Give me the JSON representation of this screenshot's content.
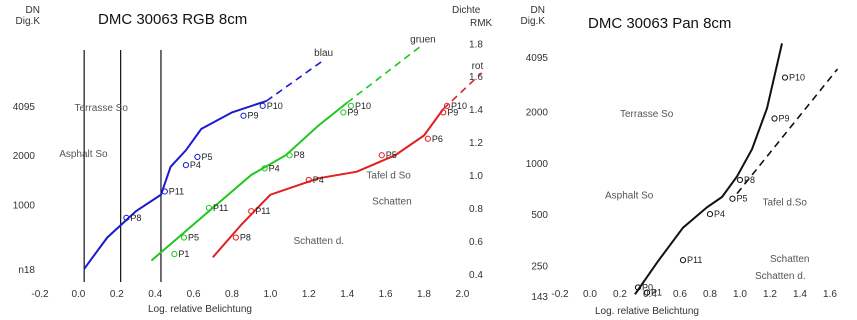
{
  "chart_data": [
    {
      "type": "line",
      "title": "DMC 30063 RGB 8cm",
      "left_axis_title": [
        "DN",
        "Dig.K"
      ],
      "right_axis_title": [
        "Dichte",
        "RMK"
      ],
      "xlabel": "Log. relative Belichtung",
      "x_ticks": [
        "-0.2",
        "0.0",
        "0.2",
        "0.4",
        "0.6",
        "0.8",
        "1.0",
        "1.2",
        "1.4",
        "1.6",
        "1.8",
        "2.0"
      ],
      "xlim": [
        -0.2,
        2.05
      ],
      "left_y_ticks": [
        {
          "label": "4095",
          "at": 1.42
        },
        {
          "label": "2000",
          "at": 1.12
        },
        {
          "label": "1000",
          "at": 0.82
        },
        {
          "label": "n18",
          "at": 0.43
        }
      ],
      "right_y_ticks": [
        "1.8",
        "1.6",
        "1.4",
        "1.2",
        "1.0",
        "0.8",
        "0.6",
        "0.4"
      ],
      "ylim": [
        0.35,
        1.82
      ],
      "vertical_lines_x": [
        0.03,
        0.22,
        0.43
      ],
      "annotations": [
        {
          "text": "Terrasse So",
          "x": -0.02,
          "y": 1.39
        },
        {
          "text": "Asphalt So",
          "x": -0.1,
          "y": 1.11
        },
        {
          "text": "Tafel d So",
          "x": 1.5,
          "y": 0.98
        },
        {
          "text": "Schatten",
          "x": 1.53,
          "y": 0.82
        },
        {
          "text": "Schatten d.",
          "x": 1.12,
          "y": 0.58
        }
      ],
      "series": [
        {
          "name": "blau",
          "color": "#1a1ad0",
          "x": [
            0.03,
            0.15,
            0.3,
            0.43,
            0.48,
            0.56,
            0.64,
            0.8,
            0.98
          ],
          "y": [
            0.43,
            0.62,
            0.78,
            0.88,
            1.05,
            1.15,
            1.28,
            1.38,
            1.45
          ],
          "extension_x": [
            0.98,
            1.28
          ],
          "extension_y": [
            1.45,
            1.7
          ],
          "points": [
            {
              "label": "P8",
              "x": 0.25,
              "y": 0.74
            },
            {
              "label": "P11",
              "x": 0.45,
              "y": 0.9
            },
            {
              "label": "P5",
              "x": 0.62,
              "y": 1.11
            },
            {
              "label": "P4",
              "x": 0.56,
              "y": 1.06
            },
            {
              "label": "P9",
              "x": 0.86,
              "y": 1.36
            },
            {
              "label": "P10",
              "x": 0.96,
              "y": 1.42
            }
          ]
        },
        {
          "name": "gruen",
          "color": "#1ec81e",
          "x": [
            0.38,
            0.55,
            0.72,
            0.9,
            1.08,
            1.25,
            1.4
          ],
          "y": [
            0.48,
            0.65,
            0.82,
            1.0,
            1.12,
            1.3,
            1.44
          ],
          "extension_x": [
            1.4,
            1.78
          ],
          "extension_y": [
            1.44,
            1.78
          ],
          "points": [
            {
              "label": "P1",
              "x": 0.5,
              "y": 0.52
            },
            {
              "label": "P5",
              "x": 0.55,
              "y": 0.62
            },
            {
              "label": "P11",
              "x": 0.68,
              "y": 0.8
            },
            {
              "label": "P4",
              "x": 0.97,
              "y": 1.04
            },
            {
              "label": "P8",
              "x": 1.1,
              "y": 1.12
            },
            {
              "label": "P9",
              "x": 1.38,
              "y": 1.38
            },
            {
              "label": "P10",
              "x": 1.42,
              "y": 1.42
            }
          ]
        },
        {
          "name": "rot",
          "color": "#e02020",
          "x": [
            0.7,
            0.85,
            1.0,
            1.25,
            1.45,
            1.65,
            1.8,
            1.9
          ],
          "y": [
            0.5,
            0.7,
            0.88,
            0.98,
            1.02,
            1.12,
            1.24,
            1.4
          ],
          "extension_x": [
            1.9,
            2.1
          ],
          "extension_y": [
            1.4,
            1.62
          ],
          "points": [
            {
              "label": "P8",
              "x": 0.82,
              "y": 0.62
            },
            {
              "label": "P11",
              "x": 0.9,
              "y": 0.78
            },
            {
              "label": "P4",
              "x": 1.2,
              "y": 0.97
            },
            {
              "label": "P5",
              "x": 1.58,
              "y": 1.12
            },
            {
              "label": "P6",
              "x": 1.82,
              "y": 1.22
            },
            {
              "label": "P9",
              "x": 1.9,
              "y": 1.38
            },
            {
              "label": "P10",
              "x": 1.92,
              "y": 1.42
            }
          ]
        }
      ]
    },
    {
      "type": "line",
      "title": "DMC 30063 Pan 8cm",
      "left_axis_title": [
        "DN",
        "Dig.K"
      ],
      "xlabel": "Log. relative Belichtung",
      "x_ticks": [
        "-0.2",
        "0.0",
        "0.2",
        "0.4",
        "0.6",
        "0.8",
        "1.0",
        "1.2",
        "1.4",
        "1.6"
      ],
      "xlim": [
        -0.2,
        1.72
      ],
      "left_y_ticks": [
        {
          "label": "4095",
          "at": 1.72
        },
        {
          "label": "2000",
          "at": 1.4
        },
        {
          "label": "1000",
          "at": 1.1
        },
        {
          "label": "500",
          "at": 0.8
        },
        {
          "label": "250",
          "at": 0.5
        },
        {
          "label": "143",
          "at": 0.32
        }
      ],
      "ylim": [
        0.32,
        1.82
      ],
      "annotations": [
        {
          "text": "Terrasse So",
          "x": 0.2,
          "y": 1.37
        },
        {
          "text": "Asphalt So",
          "x": 0.1,
          "y": 0.89
        },
        {
          "text": "Tafel d.So",
          "x": 1.15,
          "y": 0.85
        },
        {
          "text": "Schatten",
          "x": 1.2,
          "y": 0.52
        },
        {
          "text": "Schatten d.",
          "x": 1.1,
          "y": 0.42
        }
      ],
      "series": [
        {
          "name": "Pan",
          "color": "#111111",
          "x": [
            0.3,
            0.45,
            0.62,
            0.78,
            0.88,
            0.98,
            1.08,
            1.18,
            1.28
          ],
          "y": [
            0.33,
            0.52,
            0.72,
            0.84,
            0.9,
            1.02,
            1.18,
            1.42,
            1.8
          ],
          "extension_x": [
            0.98,
            1.65
          ],
          "extension_y": [
            0.92,
            1.65
          ],
          "points": [
            {
              "label": "P0",
              "x": 0.32,
              "y": 0.37
            },
            {
              "label": "P1",
              "x": 0.38,
              "y": 0.34
            },
            {
              "label": "P11",
              "x": 0.62,
              "y": 0.53
            },
            {
              "label": "P4",
              "x": 0.8,
              "y": 0.8
            },
            {
              "label": "P5",
              "x": 0.95,
              "y": 0.89
            },
            {
              "label": "P8",
              "x": 1.0,
              "y": 1.0
            },
            {
              "label": "P9",
              "x": 1.23,
              "y": 1.36
            },
            {
              "label": "P10",
              "x": 1.3,
              "y": 1.6
            }
          ]
        }
      ]
    }
  ]
}
